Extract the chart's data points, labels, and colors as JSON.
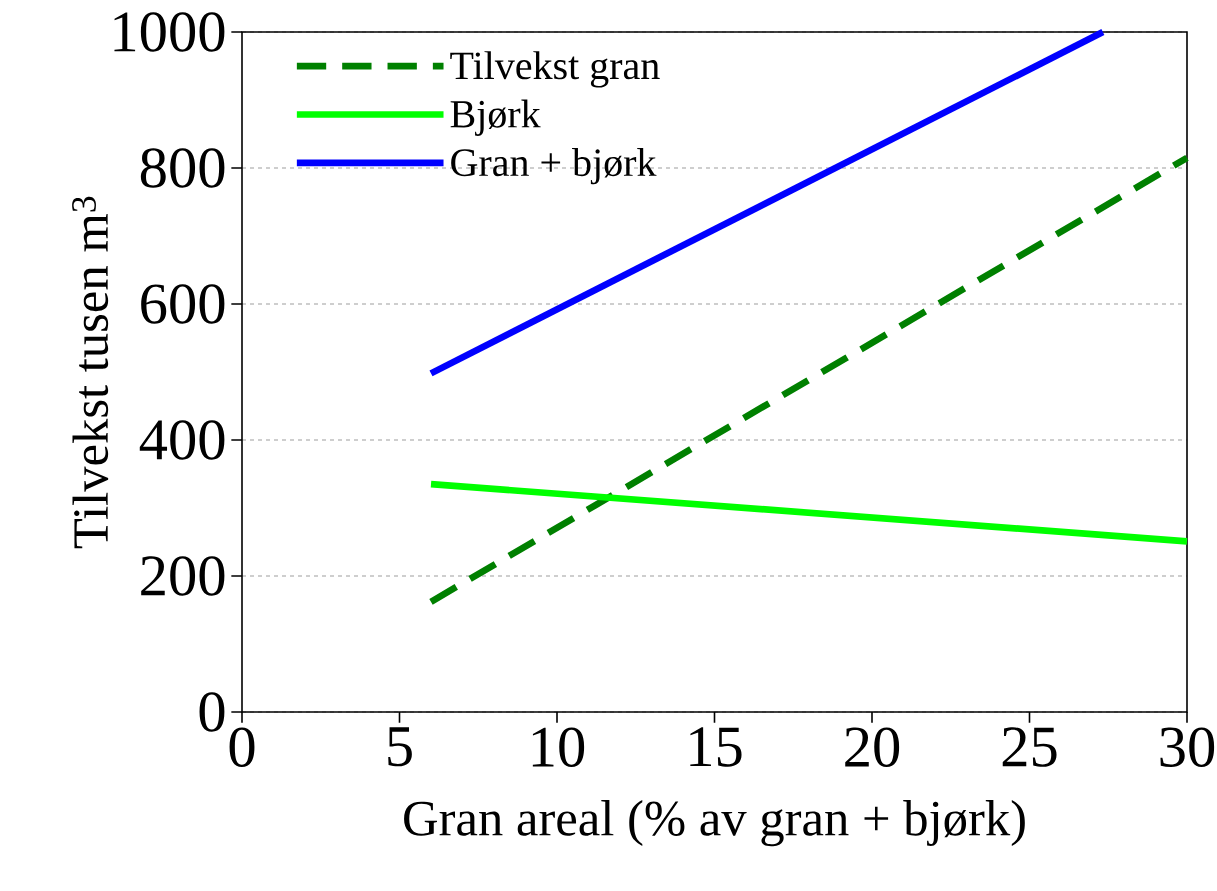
{
  "chart_data": {
    "type": "line",
    "xlabel": "Gran areal (% av gran + bjørk)",
    "ylabel": "Tilvekst tusen m$^{3}$",
    "xlim": [
      0,
      30
    ],
    "xticks": [
      0,
      5,
      10,
      15,
      20,
      25,
      30
    ],
    "ylim": [
      0,
      1000
    ],
    "yticks": [
      0,
      200,
      400,
      600,
      800,
      1000
    ],
    "grid": "y",
    "legend": "top left",
    "series": [
      {
        "name": "Tilvekst gran",
        "color": "#008000",
        "line_style": "dashed",
        "x": [
          6,
          30
        ],
        "values": [
          162,
          815
        ]
      },
      {
        "name": "Bjørk",
        "color": "#00ff00",
        "line_style": "solid",
        "x": [
          6,
          30
        ],
        "values": [
          335,
          251
        ]
      },
      {
        "name": "Gran + bjørk",
        "color": "#0000ff",
        "line_style": "solid",
        "x": [
          6,
          27.33
        ],
        "values": [
          498,
          1000
        ]
      }
    ]
  }
}
